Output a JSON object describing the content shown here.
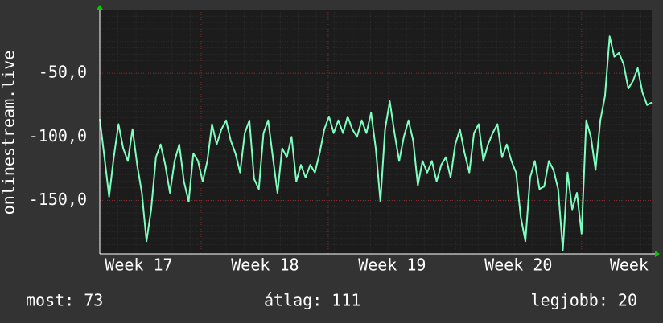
{
  "chart_data": {
    "type": "line",
    "ylabel": "onlinestream.live",
    "x": [
      0,
      6,
      12,
      18,
      24,
      30,
      36,
      42,
      48,
      54,
      60,
      66,
      72,
      78,
      84,
      90,
      96,
      102,
      108,
      114,
      120,
      126,
      132,
      138,
      144,
      150,
      156,
      162,
      168,
      174,
      180,
      186,
      192,
      198,
      204,
      210,
      216,
      222,
      228,
      234,
      240,
      246,
      252,
      258,
      264,
      270,
      276,
      282,
      288,
      294,
      300,
      306,
      312,
      318,
      324,
      330,
      336,
      342,
      348,
      354,
      360,
      366,
      372,
      378,
      384,
      390,
      396,
      402,
      408,
      414,
      420,
      426,
      432,
      438,
      444,
      450,
      456,
      462,
      468,
      474,
      480,
      486,
      492,
      498,
      504,
      510,
      516,
      522,
      528,
      534,
      540,
      546,
      552,
      558,
      564,
      570,
      576,
      582,
      588,
      594,
      600,
      606,
      612,
      618,
      624,
      630,
      636,
      642,
      648,
      654,
      660,
      666,
      672,
      678,
      684,
      690,
      696,
      702,
      708
    ],
    "series": [
      {
        "color": "#7fffbf",
        "values": [
          -86,
          -116,
          -147,
          -116,
          -90,
          -109,
          -119,
          -94,
          -122,
          -144,
          -182,
          -157,
          -116,
          -106,
          -122,
          -144,
          -119,
          -106,
          -135,
          -151,
          -113,
          -119,
          -135,
          -119,
          -90,
          -106,
          -94,
          -87,
          -103,
          -113,
          -128,
          -97,
          -87,
          -133,
          -141,
          -97,
          -87,
          -116,
          -144,
          -109,
          -116,
          -100,
          -135,
          -122,
          -132,
          -122,
          -128,
          -113,
          -94,
          -84,
          -97,
          -87,
          -97,
          -84,
          -94,
          -100,
          -87,
          -97,
          -81,
          -109,
          -151,
          -94,
          -72,
          -97,
          -119,
          -100,
          -87,
          -103,
          -138,
          -119,
          -128,
          -119,
          -135,
          -122,
          -116,
          -132,
          -106,
          -94,
          -113,
          -128,
          -97,
          -90,
          -119,
          -106,
          -97,
          -90,
          -116,
          -106,
          -119,
          -128,
          -163,
          -182,
          -132,
          -119,
          -141,
          -139,
          -119,
          -126,
          -141,
          -189,
          -128,
          -157,
          -144,
          -176,
          -87,
          -100,
          -126,
          -87,
          -68,
          -21,
          -37,
          -34,
          -43,
          -62,
          -56,
          -46,
          -65,
          -75,
          -73
        ]
      }
    ],
    "xlim": [
      0,
      708
    ],
    "xticks": [
      {
        "value": 50,
        "label": "Week 17"
      },
      {
        "value": 212,
        "label": "Week 18"
      },
      {
        "value": 375,
        "label": "Week 19"
      },
      {
        "value": 537,
        "label": "Week 20"
      },
      {
        "value": 679,
        "label": "Week"
      }
    ],
    "xgrid": [
      130,
      293,
      456,
      618
    ],
    "ylim": [
      -192,
      0
    ],
    "yticks": [
      {
        "value": -50,
        "label": "-50,0"
      },
      {
        "value": -100,
        "label": "-100,0"
      },
      {
        "value": -150,
        "label": "-150,0"
      }
    ],
    "grid": true
  },
  "footer": {
    "current": "most: 73",
    "average": "átlag: 111",
    "best": "legjobb: 20"
  }
}
